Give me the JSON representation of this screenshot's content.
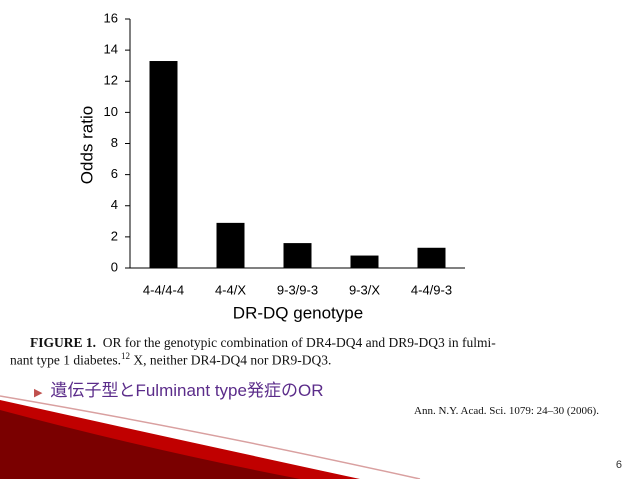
{
  "chart_data": {
    "type": "bar",
    "y_label": "Odds ratio",
    "x_label": "DR-DQ genotype",
    "categories": [
      "4-4/4-4",
      "4-4/X",
      "9-3/9-3",
      "9-3/X",
      "4-4/9-3"
    ],
    "values": [
      13.3,
      2.9,
      1.6,
      0.8,
      1.3
    ],
    "color": "#000000",
    "ylim": [
      0,
      16
    ],
    "yticks": [
      0,
      2,
      4,
      6,
      8,
      10,
      12,
      14,
      16
    ]
  },
  "caption": {
    "label": "FIGURE 1.",
    "line1": "OR for the genotypic combination of DR4-DQ4 and DR9-DQ3 in fulmi-",
    "line2a": "nant type 1 diabetes.",
    "ref": "12",
    "line2b": "X, neither DR4-DQ4 nor DR9-DQ3."
  },
  "bullet": "遺伝子型とFulminant type発症のOR",
  "citation": "Ann. N.Y. Acad. Sci. 1079: 24–30 (2006).",
  "page_number": "6"
}
